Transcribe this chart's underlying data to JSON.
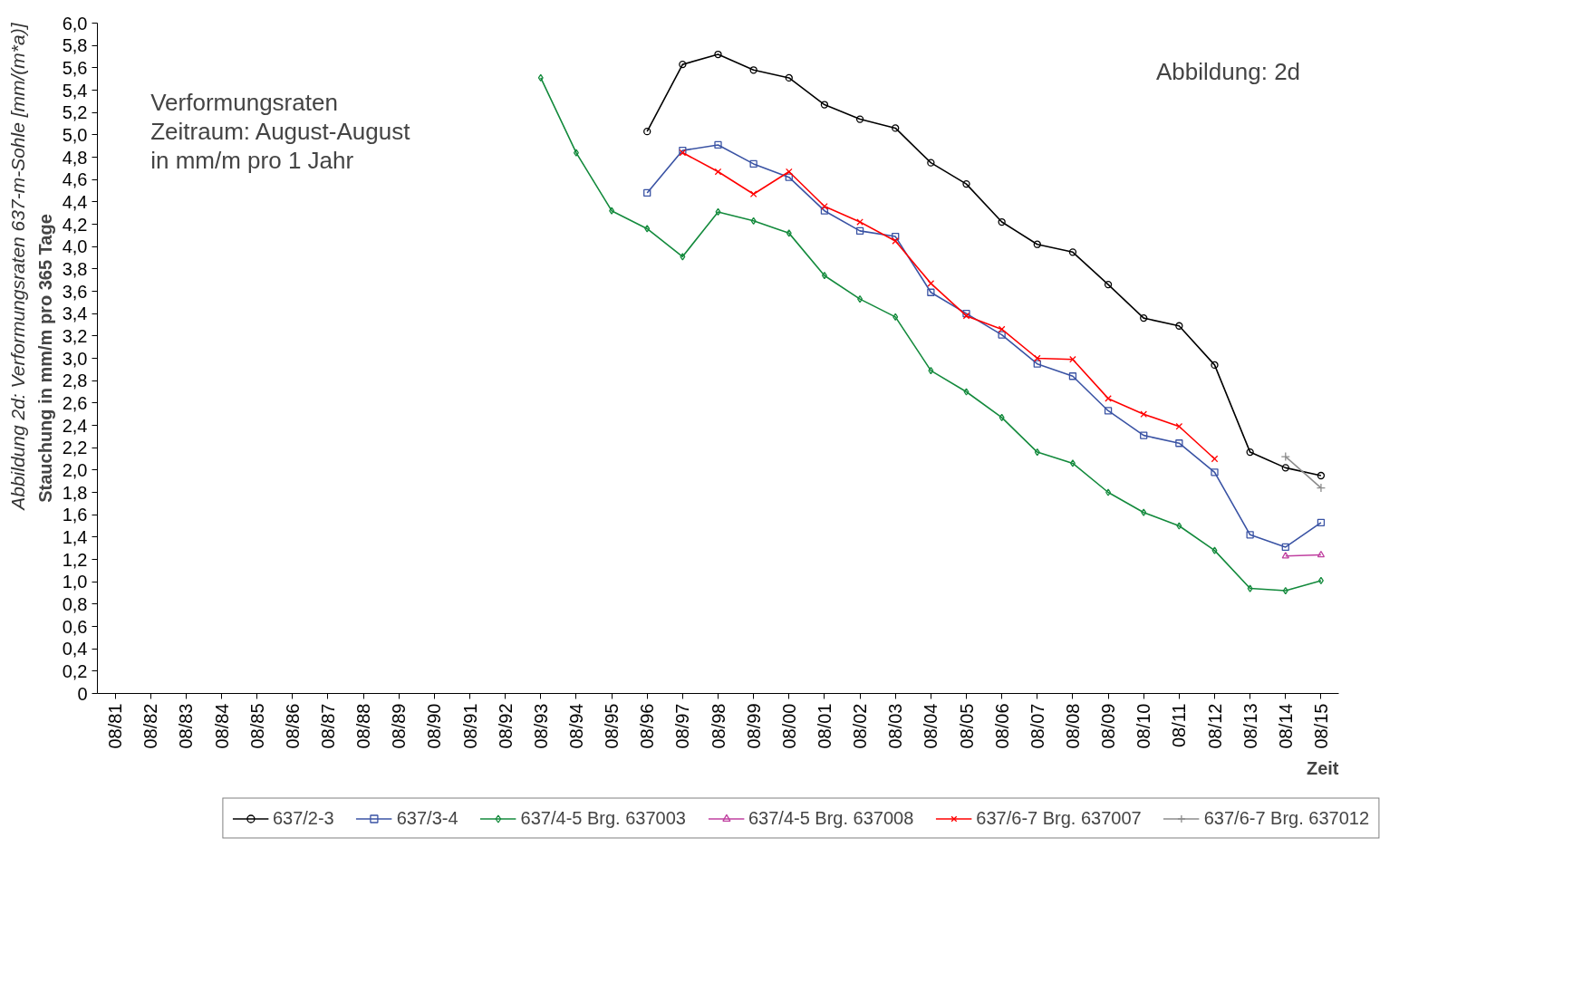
{
  "chart_data": {
    "type": "line",
    "ylabel": "Stauchung in mm/m pro 365 Tage",
    "xlabel": "Zeit",
    "annotations": [
      "Verformungsraten",
      "Zeitraum: August-August",
      "in mm/m pro 1 Jahr",
      "Abbildung:  2d",
      "Abbildung 2d: Verformungsraten 637-m-Sohle [mm/(m*a)]"
    ],
    "categories": [
      "08/81",
      "08/82",
      "08/83",
      "08/84",
      "08/85",
      "08/86",
      "08/87",
      "08/88",
      "08/89",
      "08/90",
      "08/91",
      "08/92",
      "08/93",
      "08/94",
      "08/95",
      "08/96",
      "08/97",
      "08/98",
      "08/99",
      "08/00",
      "08/01",
      "08/02",
      "08/03",
      "08/04",
      "08/05",
      "08/06",
      "08/07",
      "08/08",
      "08/09",
      "08/10",
      "08/11",
      "08/12",
      "08/13",
      "08/14",
      "08/15"
    ],
    "ylim": [
      0,
      6
    ],
    "yticks": [
      0,
      {
        "value": 0.2,
        "label": "0,2"
      },
      {
        "value": 0.4,
        "label": "0,4"
      },
      {
        "value": 0.6,
        "label": "0,6"
      },
      {
        "value": 0.8,
        "label": "0,8"
      },
      {
        "value": 1.0,
        "label": "1,0"
      },
      {
        "value": 1.2,
        "label": "1,2"
      },
      {
        "value": 1.4,
        "label": "1,4"
      },
      {
        "value": 1.6,
        "label": "1,6"
      },
      {
        "value": 1.8,
        "label": "1,8"
      },
      {
        "value": 2.0,
        "label": "2,0"
      },
      {
        "value": 2.2,
        "label": "2,2"
      },
      {
        "value": 2.4,
        "label": "2,4"
      },
      {
        "value": 2.6,
        "label": "2,6"
      },
      {
        "value": 2.8,
        "label": "2,8"
      },
      {
        "value": 3.0,
        "label": "3,0"
      },
      {
        "value": 3.2,
        "label": "3,2"
      },
      {
        "value": 3.4,
        "label": "3,4"
      },
      {
        "value": 3.6,
        "label": "3,6"
      },
      {
        "value": 3.8,
        "label": "3,8"
      },
      {
        "value": 4.0,
        "label": "4,0"
      },
      {
        "value": 4.2,
        "label": "4,2"
      },
      {
        "value": 4.4,
        "label": "4,4"
      },
      {
        "value": 4.6,
        "label": "4,6"
      },
      {
        "value": 4.8,
        "label": "4,8"
      },
      {
        "value": 5.0,
        "label": "5,0"
      },
      {
        "value": 5.2,
        "label": "5,2"
      },
      {
        "value": 5.4,
        "label": "5,4"
      },
      {
        "value": 5.6,
        "label": "5,6"
      },
      {
        "value": 5.8,
        "label": "5,8"
      },
      {
        "value": 6.0,
        "label": "6,0"
      }
    ],
    "grid": false,
    "legend": "bottom",
    "series": [
      {
        "name": "637/2-3",
        "color": "#000000",
        "marker": "circle",
        "values": [
          null,
          null,
          null,
          null,
          null,
          null,
          null,
          null,
          null,
          null,
          null,
          null,
          null,
          null,
          null,
          5.03,
          5.63,
          5.72,
          5.58,
          5.51,
          5.27,
          5.14,
          5.06,
          4.75,
          4.56,
          4.22,
          4.02,
          3.95,
          3.66,
          3.36,
          3.29,
          2.94,
          2.16,
          2.02,
          1.95
        ]
      },
      {
        "name": "637/3-4",
        "color": "#3a53a4",
        "marker": "square",
        "values": [
          null,
          null,
          null,
          null,
          null,
          null,
          null,
          null,
          null,
          null,
          null,
          null,
          null,
          null,
          null,
          4.48,
          4.86,
          4.91,
          4.74,
          4.62,
          4.32,
          4.14,
          4.09,
          3.59,
          3.4,
          3.21,
          2.95,
          2.84,
          2.53,
          2.31,
          2.24,
          1.98,
          1.42,
          1.31,
          1.53
        ]
      },
      {
        "name": "637/4-5 Brg. 637003",
        "color": "#138a3c",
        "marker": "diamond",
        "values": [
          null,
          null,
          null,
          null,
          null,
          null,
          null,
          null,
          null,
          null,
          null,
          null,
          5.51,
          4.84,
          4.32,
          4.16,
          3.91,
          4.31,
          4.23,
          4.12,
          3.74,
          3.53,
          3.37,
          2.89,
          2.7,
          2.47,
          2.16,
          2.06,
          1.8,
          1.62,
          1.5,
          1.28,
          0.94,
          0.92,
          1.01
        ]
      },
      {
        "name": "637/4-5 Brg. 637008",
        "color": "#c040a0",
        "marker": "triangle",
        "values": [
          null,
          null,
          null,
          null,
          null,
          null,
          null,
          null,
          null,
          null,
          null,
          null,
          null,
          null,
          null,
          null,
          null,
          null,
          null,
          null,
          null,
          null,
          null,
          null,
          null,
          null,
          null,
          null,
          null,
          null,
          null,
          null,
          null,
          1.23,
          1.24
        ]
      },
      {
        "name": "637/6-7 Brg. 637007",
        "color": "#ff0000",
        "marker": "cross",
        "values": [
          null,
          null,
          null,
          null,
          null,
          null,
          null,
          null,
          null,
          null,
          null,
          null,
          null,
          null,
          null,
          null,
          4.84,
          4.67,
          4.47,
          4.67,
          4.36,
          4.22,
          4.05,
          3.67,
          3.38,
          3.26,
          3.0,
          2.99,
          2.64,
          2.5,
          2.39,
          2.1,
          null,
          null,
          null
        ]
      },
      {
        "name": "637/6-7 Brg. 637012",
        "color": "#8c8c8c",
        "marker": "plus",
        "values": [
          null,
          null,
          null,
          null,
          null,
          null,
          null,
          null,
          null,
          null,
          null,
          null,
          null,
          null,
          null,
          null,
          null,
          null,
          null,
          null,
          null,
          null,
          null,
          null,
          null,
          null,
          null,
          null,
          null,
          null,
          null,
          null,
          null,
          2.12,
          1.84
        ]
      }
    ]
  }
}
